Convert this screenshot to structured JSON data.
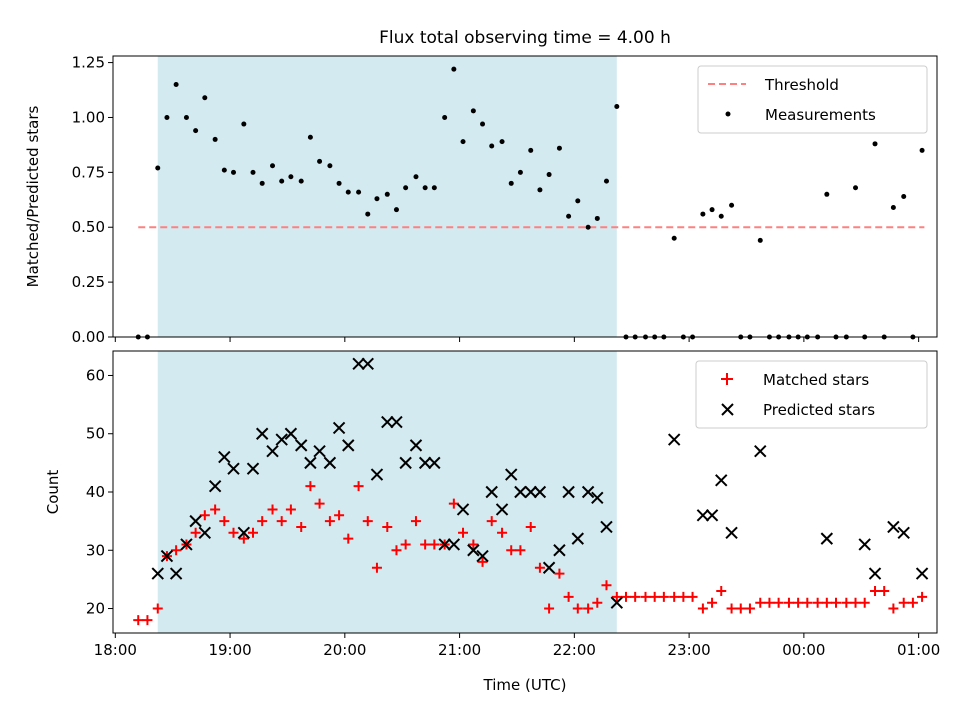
{
  "chart_data": [
    {
      "type": "scatter",
      "title": "Flux total observing time = 4.00 h",
      "xlabel": "",
      "ylabel": "Matched/Predicted stars",
      "x_unit": "hours from 18:00 UTC",
      "xlim": [
        17.98,
        25.16
      ],
      "ylim": [
        0,
        1.28
      ],
      "yticks": [
        0.0,
        0.25,
        0.5,
        0.75,
        1.0,
        1.25
      ],
      "ytick_labels": [
        "0.00",
        "0.25",
        "0.50",
        "0.75",
        "1.00",
        "1.25"
      ],
      "threshold": {
        "name": "Threshold",
        "y": 0.5,
        "x_range": [
          18.2,
          25.05
        ],
        "color": "#ff8080"
      },
      "highlight": {
        "x_range": [
          18.37,
          22.37
        ],
        "color": "#d3eaf0"
      },
      "legend": [
        "Threshold",
        "Measurements"
      ],
      "legend_position": "upper right",
      "series": [
        {
          "name": "Measurements",
          "color": "#000000",
          "points": [
            [
              18.2,
              0
            ],
            [
              18.28,
              0
            ],
            [
              18.37,
              0.77
            ],
            [
              18.45,
              1.0
            ],
            [
              18.53,
              1.15
            ],
            [
              18.62,
              1.0
            ],
            [
              18.7,
              0.94
            ],
            [
              18.78,
              1.09
            ],
            [
              18.87,
              0.9
            ],
            [
              18.95,
              0.76
            ],
            [
              19.03,
              0.75
            ],
            [
              19.12,
              0.97
            ],
            [
              19.2,
              0.75
            ],
            [
              19.28,
              0.7
            ],
            [
              19.37,
              0.78
            ],
            [
              19.45,
              0.71
            ],
            [
              19.53,
              0.73
            ],
            [
              19.62,
              0.71
            ],
            [
              19.7,
              0.91
            ],
            [
              19.78,
              0.8
            ],
            [
              19.87,
              0.78
            ],
            [
              19.95,
              0.7
            ],
            [
              20.03,
              0.66
            ],
            [
              20.12,
              0.66
            ],
            [
              20.2,
              0.56
            ],
            [
              20.28,
              0.63
            ],
            [
              20.37,
              0.65
            ],
            [
              20.45,
              0.58
            ],
            [
              20.53,
              0.68
            ],
            [
              20.62,
              0.73
            ],
            [
              20.7,
              0.68
            ],
            [
              20.78,
              0.68
            ],
            [
              20.87,
              1.0
            ],
            [
              20.95,
              1.22
            ],
            [
              21.03,
              0.89
            ],
            [
              21.12,
              1.03
            ],
            [
              21.2,
              0.97
            ],
            [
              21.28,
              0.87
            ],
            [
              21.37,
              0.89
            ],
            [
              21.45,
              0.7
            ],
            [
              21.53,
              0.75
            ],
            [
              21.62,
              0.85
            ],
            [
              21.7,
              0.67
            ],
            [
              21.78,
              0.74
            ],
            [
              21.87,
              0.86
            ],
            [
              21.95,
              0.55
            ],
            [
              22.03,
              0.62
            ],
            [
              22.12,
              0.5
            ],
            [
              22.2,
              0.54
            ],
            [
              22.28,
              0.71
            ],
            [
              22.37,
              1.05
            ],
            [
              22.45,
              0
            ],
            [
              22.53,
              0
            ],
            [
              22.62,
              0
            ],
            [
              22.7,
              0
            ],
            [
              22.78,
              0
            ],
            [
              22.87,
              0.45
            ],
            [
              22.95,
              0
            ],
            [
              23.03,
              0
            ],
            [
              23.12,
              0.56
            ],
            [
              23.2,
              0.58
            ],
            [
              23.28,
              0.55
            ],
            [
              23.37,
              0.6
            ],
            [
              23.45,
              0
            ],
            [
              23.53,
              0
            ],
            [
              23.62,
              0.44
            ],
            [
              23.7,
              0
            ],
            [
              23.78,
              0
            ],
            [
              23.87,
              0
            ],
            [
              23.95,
              0
            ],
            [
              24.03,
              0
            ],
            [
              24.12,
              0
            ],
            [
              24.2,
              0.65
            ],
            [
              24.28,
              0
            ],
            [
              24.37,
              0
            ],
            [
              24.45,
              0.68
            ],
            [
              24.53,
              0
            ],
            [
              24.62,
              0.88
            ],
            [
              24.7,
              0
            ],
            [
              24.78,
              0.59
            ],
            [
              24.87,
              0.64
            ],
            [
              24.95,
              0
            ],
            [
              25.03,
              0.85
            ]
          ]
        }
      ]
    },
    {
      "type": "scatter",
      "title": "",
      "xlabel": "Time (UTC)",
      "ylabel": "Count",
      "x_unit": "hours from 18:00 UTC",
      "xlim": [
        17.98,
        25.16
      ],
      "ylim": [
        15.8,
        64.2
      ],
      "yticks": [
        20,
        30,
        40,
        50,
        60
      ],
      "ytick_labels": [
        "20",
        "30",
        "40",
        "50",
        "60"
      ],
      "xticks": [
        18,
        19,
        20,
        21,
        22,
        23,
        24,
        25
      ],
      "xtick_labels": [
        "18:00",
        "19:00",
        "20:00",
        "21:00",
        "22:00",
        "23:00",
        "00:00",
        "01:00"
      ],
      "highlight": {
        "x_range": [
          18.37,
          22.37
        ],
        "color": "#d3eaf0"
      },
      "legend": [
        "Matched stars",
        "Predicted stars"
      ],
      "legend_position": "upper right",
      "series": [
        {
          "name": "Matched stars",
          "color": "#ff0000",
          "marker": "+",
          "points": [
            [
              18.2,
              18
            ],
            [
              18.28,
              18
            ],
            [
              18.37,
              20
            ],
            [
              18.45,
              29
            ],
            [
              18.53,
              30
            ],
            [
              18.62,
              31
            ],
            [
              18.7,
              33
            ],
            [
              18.78,
              36
            ],
            [
              18.87,
              37
            ],
            [
              18.95,
              35
            ],
            [
              19.03,
              33
            ],
            [
              19.12,
              32
            ],
            [
              19.2,
              33
            ],
            [
              19.28,
              35
            ],
            [
              19.37,
              37
            ],
            [
              19.45,
              35
            ],
            [
              19.53,
              37
            ],
            [
              19.62,
              34
            ],
            [
              19.7,
              41
            ],
            [
              19.78,
              38
            ],
            [
              19.87,
              35
            ],
            [
              19.95,
              36
            ],
            [
              20.03,
              32
            ],
            [
              20.12,
              41
            ],
            [
              20.2,
              35
            ],
            [
              20.28,
              27
            ],
            [
              20.37,
              34
            ],
            [
              20.45,
              30
            ],
            [
              20.53,
              31
            ],
            [
              20.62,
              35
            ],
            [
              20.7,
              31
            ],
            [
              20.78,
              31
            ],
            [
              20.87,
              31
            ],
            [
              20.95,
              38
            ],
            [
              21.03,
              33
            ],
            [
              21.12,
              31
            ],
            [
              21.2,
              28
            ],
            [
              21.28,
              35
            ],
            [
              21.37,
              33
            ],
            [
              21.45,
              30
            ],
            [
              21.53,
              30
            ],
            [
              21.62,
              34
            ],
            [
              21.7,
              27
            ],
            [
              21.78,
              20
            ],
            [
              21.87,
              26
            ],
            [
              21.95,
              22
            ],
            [
              22.03,
              20
            ],
            [
              22.12,
              20
            ],
            [
              22.2,
              21
            ],
            [
              22.28,
              24
            ],
            [
              22.37,
              22
            ],
            [
              22.45,
              22
            ],
            [
              22.53,
              22
            ],
            [
              22.62,
              22
            ],
            [
              22.7,
              22
            ],
            [
              22.78,
              22
            ],
            [
              22.87,
              22
            ],
            [
              22.95,
              22
            ],
            [
              23.03,
              22
            ],
            [
              23.12,
              20
            ],
            [
              23.2,
              21
            ],
            [
              23.28,
              23
            ],
            [
              23.37,
              20
            ],
            [
              23.45,
              20
            ],
            [
              23.53,
              20
            ],
            [
              23.62,
              21
            ],
            [
              23.7,
              21
            ],
            [
              23.78,
              21
            ],
            [
              23.87,
              21
            ],
            [
              23.95,
              21
            ],
            [
              24.03,
              21
            ],
            [
              24.12,
              21
            ],
            [
              24.2,
              21
            ],
            [
              24.28,
              21
            ],
            [
              24.37,
              21
            ],
            [
              24.45,
              21
            ],
            [
              24.53,
              21
            ],
            [
              24.62,
              23
            ],
            [
              24.7,
              23
            ],
            [
              24.78,
              20
            ],
            [
              24.87,
              21
            ],
            [
              24.95,
              21
            ],
            [
              25.03,
              22
            ]
          ]
        },
        {
          "name": "Predicted stars",
          "color": "#000000",
          "marker": "x",
          "points": [
            [
              18.37,
              26
            ],
            [
              18.45,
              29
            ],
            [
              18.53,
              26
            ],
            [
              18.62,
              31
            ],
            [
              18.7,
              35
            ],
            [
              18.78,
              33
            ],
            [
              18.87,
              41
            ],
            [
              18.95,
              46
            ],
            [
              19.03,
              44
            ],
            [
              19.12,
              33
            ],
            [
              19.2,
              44
            ],
            [
              19.28,
              50
            ],
            [
              19.37,
              47
            ],
            [
              19.45,
              49
            ],
            [
              19.53,
              50
            ],
            [
              19.62,
              48
            ],
            [
              19.7,
              45
            ],
            [
              19.78,
              47
            ],
            [
              19.87,
              45
            ],
            [
              19.95,
              51
            ],
            [
              20.03,
              48
            ],
            [
              20.12,
              62
            ],
            [
              20.2,
              62
            ],
            [
              20.28,
              43
            ],
            [
              20.37,
              52
            ],
            [
              20.45,
              52
            ],
            [
              20.53,
              45
            ],
            [
              20.62,
              48
            ],
            [
              20.7,
              45
            ],
            [
              20.78,
              45
            ],
            [
              20.87,
              31
            ],
            [
              20.95,
              31
            ],
            [
              21.03,
              37
            ],
            [
              21.12,
              30
            ],
            [
              21.2,
              29
            ],
            [
              21.28,
              40
            ],
            [
              21.37,
              37
            ],
            [
              21.45,
              43
            ],
            [
              21.53,
              40
            ],
            [
              21.62,
              40
            ],
            [
              21.7,
              40
            ],
            [
              21.78,
              27
            ],
            [
              21.87,
              30
            ],
            [
              21.95,
              40
            ],
            [
              22.03,
              32
            ],
            [
              22.12,
              40
            ],
            [
              22.2,
              39
            ],
            [
              22.28,
              34
            ],
            [
              22.37,
              21
            ],
            [
              22.87,
              49
            ],
            [
              23.12,
              36
            ],
            [
              23.2,
              36
            ],
            [
              23.28,
              42
            ],
            [
              23.37,
              33
            ],
            [
              23.62,
              47
            ],
            [
              24.2,
              32
            ],
            [
              24.53,
              31
            ],
            [
              24.62,
              26
            ],
            [
              24.78,
              34
            ],
            [
              24.87,
              33
            ],
            [
              25.03,
              26
            ]
          ]
        }
      ]
    }
  ]
}
